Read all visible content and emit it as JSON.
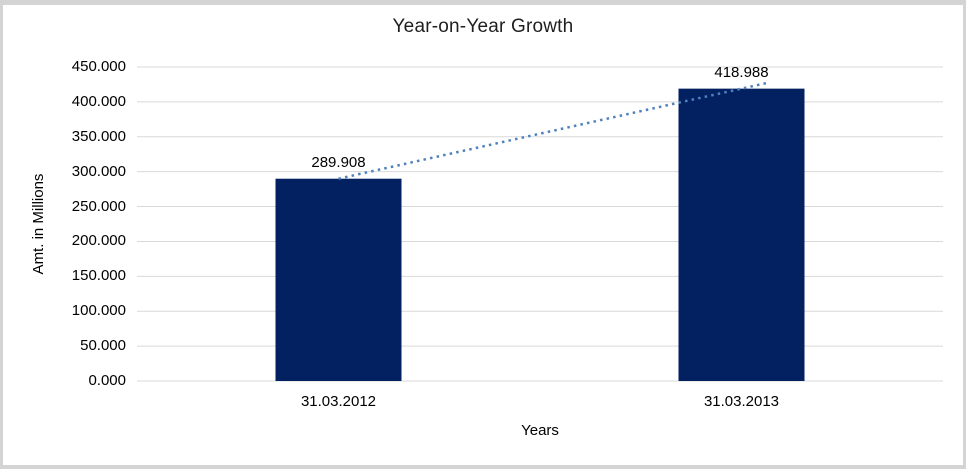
{
  "chart_data": {
    "type": "bar",
    "title": "Year-on-Year Growth",
    "xlabel": "Years",
    "ylabel": "Amt. in Millions",
    "categories": [
      "31.03.2012",
      "31.03.2013"
    ],
    "values": [
      289.908,
      418.988
    ],
    "data_labels": [
      "289.908",
      "418.988"
    ],
    "ytick_labels": [
      "0.000",
      "50.000",
      "100.000",
      "150.000",
      "200.000",
      "250.000",
      "300.000",
      "350.000",
      "400.000",
      "450.000"
    ],
    "ytick_values": [
      0,
      50,
      100,
      150,
      200,
      250,
      300,
      350,
      400,
      450
    ],
    "ylim": [
      0,
      450
    ],
    "grid": true,
    "legend": "none",
    "bar_color": "#032160",
    "gridline_color": "#d9d9d9",
    "trendline": {
      "kind": "linear",
      "style": "dotted",
      "color": "#4f81bd"
    }
  },
  "frame_color": "#d4d4d4"
}
